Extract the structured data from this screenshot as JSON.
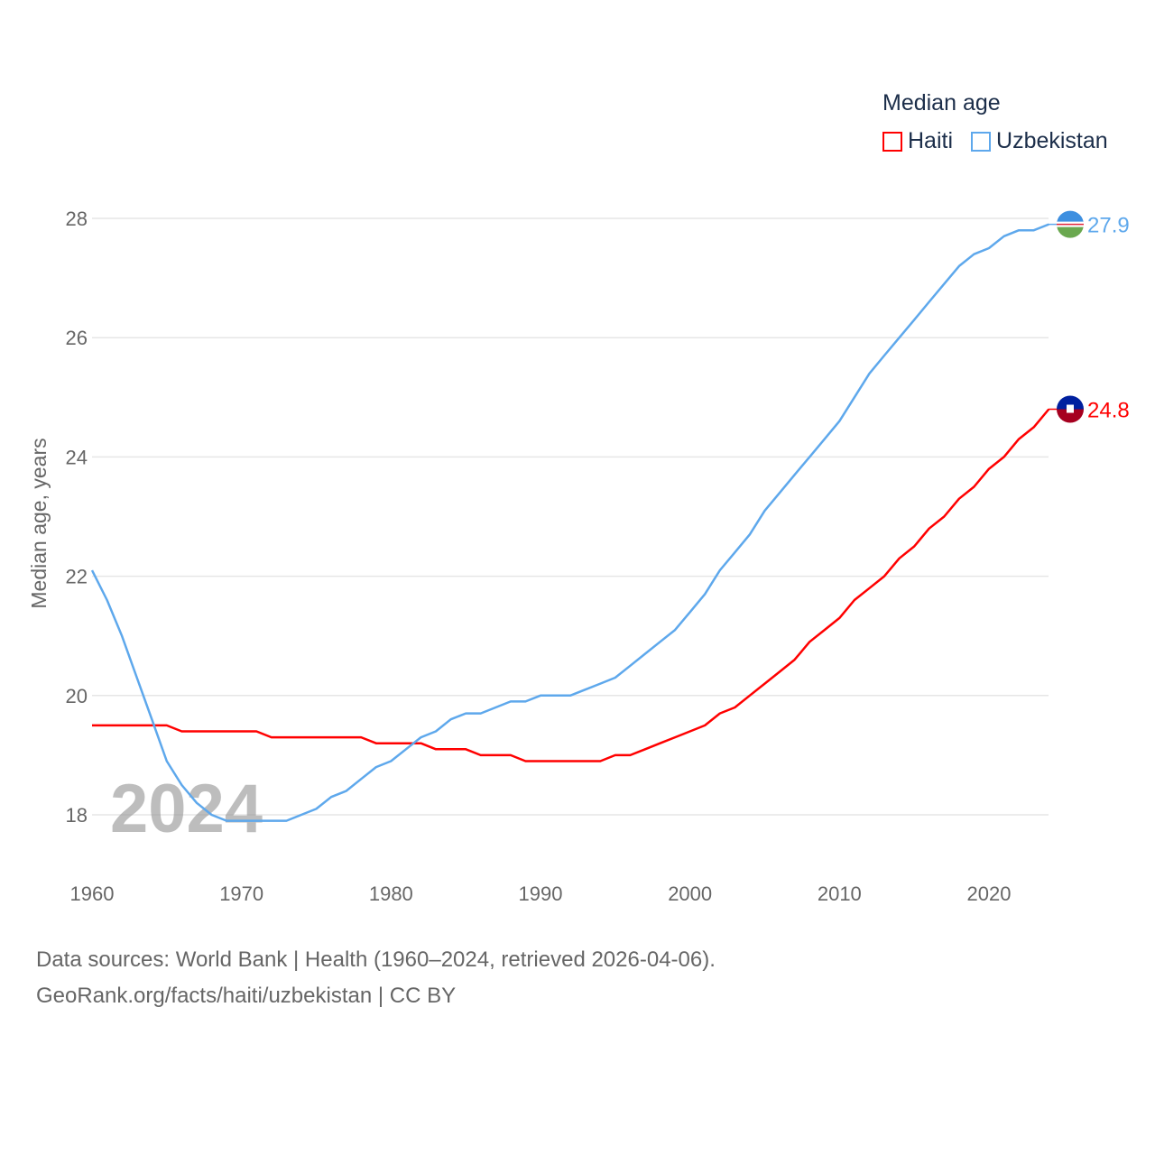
{
  "chart_data": {
    "type": "line",
    "title": "Median age",
    "xlabel": "",
    "ylabel": "Median age, years",
    "xlim": [
      1960,
      2024
    ],
    "ylim": [
      17,
      28.3
    ],
    "x_ticks": [
      "1960",
      "1970",
      "1980",
      "1990",
      "2000",
      "2010",
      "2020"
    ],
    "y_ticks": [
      "18",
      "20",
      "22",
      "24",
      "26",
      "28"
    ],
    "grid": true,
    "legend_position": "top-right",
    "watermark_year": "2024",
    "series": [
      {
        "name": "Haiti",
        "color": "#ff0000",
        "end_label": "24.8",
        "values": [
          19.5,
          19.5,
          19.5,
          19.5,
          19.5,
          19.5,
          19.4,
          19.4,
          19.4,
          19.4,
          19.4,
          19.4,
          19.3,
          19.3,
          19.3,
          19.3,
          19.3,
          19.3,
          19.3,
          19.2,
          19.2,
          19.2,
          19.2,
          19.1,
          19.1,
          19.1,
          19.0,
          19.0,
          19.0,
          18.9,
          18.9,
          18.9,
          18.9,
          18.9,
          18.9,
          19.0,
          19.0,
          19.1,
          19.2,
          19.3,
          19.4,
          19.5,
          19.7,
          19.8,
          20.0,
          20.2,
          20.4,
          20.6,
          20.9,
          21.1,
          21.3,
          21.6,
          21.8,
          22.0,
          22.3,
          22.5,
          22.8,
          23.0,
          23.3,
          23.5,
          23.8,
          24.0,
          24.3,
          24.5,
          24.8
        ]
      },
      {
        "name": "Uzbekistan",
        "color": "#5ea8ec",
        "end_label": "27.9",
        "values": [
          22.1,
          21.6,
          21.0,
          20.3,
          19.6,
          18.9,
          18.5,
          18.2,
          18.0,
          17.9,
          17.9,
          17.9,
          17.9,
          17.9,
          18.0,
          18.1,
          18.3,
          18.4,
          18.6,
          18.8,
          18.9,
          19.1,
          19.3,
          19.4,
          19.6,
          19.7,
          19.7,
          19.8,
          19.9,
          19.9,
          20.0,
          20.0,
          20.0,
          20.1,
          20.2,
          20.3,
          20.5,
          20.7,
          20.9,
          21.1,
          21.4,
          21.7,
          22.1,
          22.4,
          22.7,
          23.1,
          23.4,
          23.7,
          24.0,
          24.3,
          24.6,
          25.0,
          25.4,
          25.7,
          26.0,
          26.3,
          26.6,
          26.9,
          27.2,
          27.4,
          27.5,
          27.7,
          27.8,
          27.8,
          27.9
        ]
      }
    ]
  },
  "footer": {
    "line1": "Data sources: World Bank | Health (1960–2024, retrieved 2026-04-06).",
    "line2": "GeoRank.org/facts/haiti/uzbekistan | CC BY"
  }
}
